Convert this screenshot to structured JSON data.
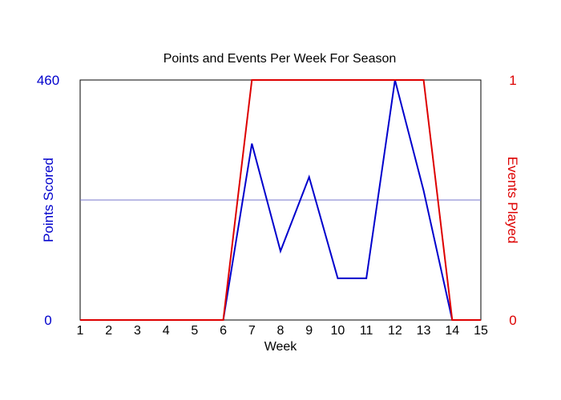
{
  "chart_data": {
    "type": "line",
    "title": "Points and Events Per Week For Season",
    "xlabel": "Week",
    "ylabel_left": "Points Scored",
    "ylabel_right": "Events Played",
    "x": [
      1,
      2,
      3,
      4,
      5,
      6,
      7,
      8,
      9,
      10,
      11,
      12,
      13,
      14,
      15
    ],
    "xlim": [
      1,
      15
    ],
    "ylim_left": [
      0,
      460
    ],
    "ylim_right": [
      0,
      1
    ],
    "left_ticks": [
      "0",
      "460"
    ],
    "right_ticks": [
      "0",
      "1"
    ],
    "grid_midline": true,
    "series": [
      {
        "name": "Points Scored",
        "axis": "left",
        "color": "#0000cc",
        "values": [
          0,
          0,
          0,
          0,
          0,
          0,
          338,
          132,
          274,
          80,
          80,
          460,
          248,
          0,
          0
        ]
      },
      {
        "name": "Events Played",
        "axis": "right",
        "color": "#dd0000",
        "values": [
          0,
          0,
          0,
          0,
          0,
          0,
          1,
          1,
          1,
          1,
          1,
          1,
          1,
          0,
          0
        ]
      }
    ]
  }
}
